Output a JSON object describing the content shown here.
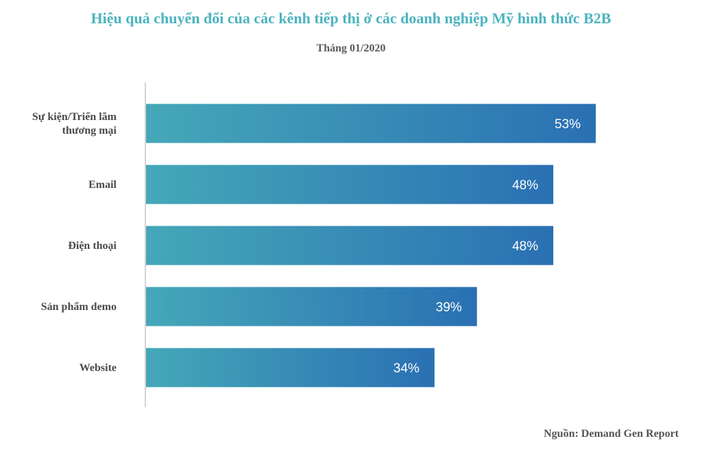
{
  "title": "Hiệu quả chuyển đổi của các kênh tiếp thị ở các doanh nghiệp Mỹ hình thức B2B",
  "subtitle": "Tháng 01/2020",
  "source": "Nguồn: Demand Gen Report",
  "colors": {
    "title": "#4cb4bf",
    "bar_gradient_start": "#45a8b8",
    "bar_gradient_end": "#2a70b3"
  },
  "chart_data": {
    "type": "bar",
    "orientation": "horizontal",
    "title": "Hiệu quả chuyển đổi của các kênh tiếp thị ở các doanh nghiệp Mỹ hình thức B2B",
    "subtitle": "Tháng 01/2020",
    "categories": [
      [
        "Sự kiện/Triển lãm",
        "thương mại"
      ],
      [
        "Email"
      ],
      [
        "Điện thoại"
      ],
      [
        "Sản phẩm demo"
      ],
      [
        "Website"
      ]
    ],
    "values": [
      53,
      48,
      48,
      39,
      34
    ],
    "value_labels": [
      "53%",
      "48%",
      "48%",
      "39%",
      "34%"
    ],
    "unit": "%",
    "xlim": [
      0,
      53
    ],
    "grid": false,
    "legend": "none"
  }
}
